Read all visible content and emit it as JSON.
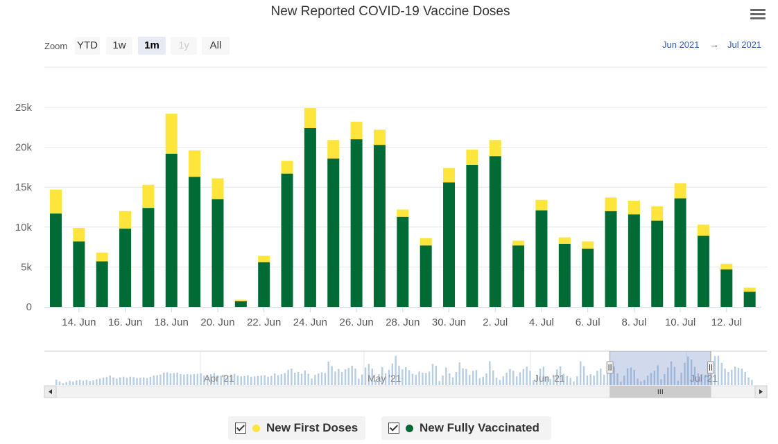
{
  "chart_data": {
    "type": "bar",
    "stacked": true,
    "title": "New Reported COVID-19 Vaccine Doses",
    "categories": [
      "13 Jun",
      "14 Jun",
      "15 Jun",
      "16 Jun",
      "17 Jun",
      "18 Jun",
      "19 Jun",
      "20 Jun",
      "21 Jun",
      "22 Jun",
      "23 Jun",
      "24 Jun",
      "25 Jun",
      "26 Jun",
      "27 Jun",
      "28 Jun",
      "29 Jun",
      "30 Jun",
      "1 Jul",
      "2 Jul",
      "3 Jul",
      "4 Jul",
      "5 Jul",
      "6 Jul",
      "7 Jul",
      "8 Jul",
      "9 Jul",
      "10 Jul",
      "11 Jul",
      "12 Jul",
      "13 Jul"
    ],
    "x_tick_labels": [
      "14. Jun",
      "16. Jun",
      "18. Jun",
      "20. Jun",
      "22. Jun",
      "24. Jun",
      "26. Jun",
      "28. Jun",
      "30. Jun",
      "2. Jul",
      "4. Jul",
      "6. Jul",
      "8. Jul",
      "10. Jul",
      "12. Jul"
    ],
    "x_tick_indices": [
      1,
      3,
      5,
      7,
      9,
      11,
      13,
      15,
      17,
      19,
      21,
      23,
      25,
      27,
      29
    ],
    "y_ticks": [
      0,
      5000,
      10000,
      15000,
      20000,
      25000
    ],
    "y_tick_labels": [
      "0",
      "5k",
      "10k",
      "15k",
      "20k",
      "25k"
    ],
    "ylim": [
      0,
      25000
    ],
    "series": [
      {
        "name": "New Fully Vaccinated",
        "color": "#006b35",
        "values": [
          11700,
          8200,
          5700,
          9800,
          12400,
          19200,
          16300,
          13500,
          700,
          5600,
          16700,
          22400,
          18600,
          21000,
          20300,
          11300,
          7700,
          15600,
          17800,
          18900,
          7700,
          12100,
          7900,
          7300,
          12000,
          11600,
          10800,
          13600,
          8900,
          4700,
          1900
        ]
      },
      {
        "name": "New First Doses",
        "color": "#fde53b",
        "values": [
          3000,
          1700,
          1100,
          2200,
          2900,
          5000,
          3300,
          2600,
          200,
          800,
          1600,
          2500,
          2300,
          2200,
          1900,
          900,
          900,
          1800,
          1900,
          2000,
          600,
          1300,
          800,
          900,
          1700,
          1700,
          1800,
          1900,
          1400,
          700,
          500
        ]
      }
    ],
    "legend": {
      "position": "bottom-center"
    }
  },
  "toolbar": {
    "zoom_label": "Zoom",
    "zoom_buttons": [
      {
        "label": "YTD",
        "state": "normal"
      },
      {
        "label": "1w",
        "state": "normal"
      },
      {
        "label": "1m",
        "state": "active"
      },
      {
        "label": "1y",
        "state": "disabled"
      },
      {
        "label": "All",
        "state": "normal"
      }
    ],
    "range_from": "Jun 2021",
    "range_arrow": "→",
    "range_to": "Jul 2021"
  },
  "navigator": {
    "labels": [
      "Apr '21",
      "May '21",
      "Jun '21",
      "Jul '21"
    ],
    "overview_values": [
      1500,
      1000,
      500,
      800,
      1200,
      1000,
      1300,
      1400,
      1200,
      1400,
      1100,
      1300,
      1600,
      1800,
      2000,
      2200,
      2600,
      2100,
      1800,
      2100,
      2300,
      2000,
      2300,
      2200,
      1900,
      2000,
      2100,
      1900,
      2300,
      2600,
      2700,
      2900,
      3400,
      3500,
      3200,
      3300,
      3400,
      3000,
      2900,
      3000,
      2900,
      3000,
      3100,
      3200,
      2600,
      2700,
      3000,
      3300,
      2700,
      2600,
      2800,
      2500,
      2900,
      3100,
      2600,
      2400,
      2500,
      2700,
      2300,
      2400,
      2500,
      2600,
      2700,
      2300,
      2500,
      3200,
      2700,
      3000,
      3300,
      4200,
      4500,
      3400,
      3600,
      3100,
      4000,
      3100,
      1800,
      2800,
      3200,
      3500,
      3300,
      6400,
      5200,
      3700,
      4400,
      3600,
      4300,
      4700,
      5300,
      4500,
      1800,
      2900,
      4800,
      5800,
      4500,
      1300,
      3000,
      4900,
      3200,
      4200,
      5900,
      8000,
      5300,
      4300,
      4900,
      4100,
      3100,
      2800,
      3700,
      3400,
      3300,
      3700,
      5800,
      5300,
      1100,
      2600,
      4800,
      3200,
      2100,
      3600,
      6200,
      4600,
      4400,
      2800,
      3900,
      4100,
      1900,
      2300,
      3200,
      6500,
      4000,
      2000,
      1400,
      2400,
      3400,
      4400,
      3900,
      2400,
      3500,
      4400,
      5000,
      3900,
      1300,
      2800,
      4500,
      5000,
      2400,
      1700,
      2700,
      4300,
      5100,
      3100,
      2500,
      2000,
      1000,
      2400,
      6500,
      5200,
      2600,
      3000,
      2600,
      3900,
      4500,
      2800,
      3200,
      5300,
      5100,
      3200,
      900,
      2600,
      4600,
      4800,
      4200,
      1800,
      1000,
      1400,
      2600,
      3300,
      3900,
      5400,
      1600,
      3000,
      4800,
      6500,
      5000,
      1200,
      3400,
      6100,
      7800,
      7000,
      5000,
      3200,
      3000,
      2700,
      4700,
      5600,
      7900,
      8000,
      6100,
      4500,
      3600,
      4200,
      5000,
      4700,
      4500,
      3600,
      2100,
      1400
    ],
    "selected_from_index": 165,
    "selected_to_index": 195
  },
  "legend": {
    "items": [
      {
        "label": "New First Doses",
        "color": "#fde53b"
      },
      {
        "label": "New Fully Vaccinated",
        "color": "#006b35"
      }
    ]
  }
}
